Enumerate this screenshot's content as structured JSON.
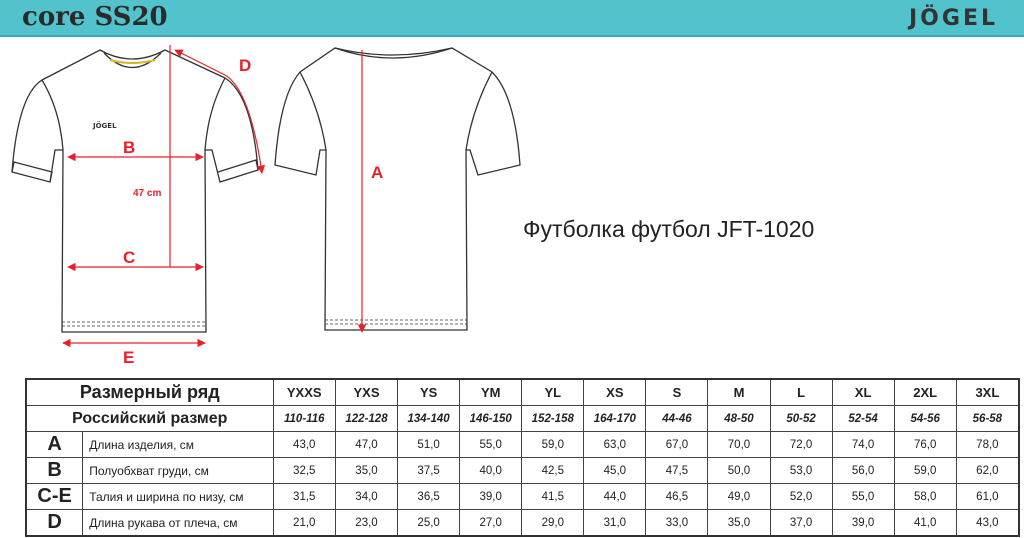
{
  "header": {
    "title": "core SS20",
    "logo": "JÖGEL",
    "banner_color": "#52c3cc"
  },
  "diagram": {
    "labels": {
      "A": "A",
      "B": "B",
      "C": "C",
      "D": "D",
      "E": "E"
    },
    "front_length_note": "47 cm",
    "chest_logo": "JÖGEL",
    "annotation_color": "#e8202a"
  },
  "product_title": "Футболка футбол JFT-1020",
  "size_table": {
    "header_label": "Размерный ряд",
    "ru_label": "Российский размер",
    "sizes": [
      "YXXS",
      "YXS",
      "YS",
      "YM",
      "YL",
      "XS",
      "S",
      "M",
      "L",
      "XL",
      "2XL",
      "3XL"
    ],
    "ru_sizes": [
      "110-116",
      "122-128",
      "134-140",
      "146-150",
      "152-158",
      "164-170",
      "44-46",
      "48-50",
      "50-52",
      "52-54",
      "54-56",
      "56-58"
    ],
    "rows": [
      {
        "code": "A",
        "label": "Длина изделия, см",
        "values": [
          "43,0",
          "47,0",
          "51,0",
          "55,0",
          "59,0",
          "63,0",
          "67,0",
          "70,0",
          "72,0",
          "74,0",
          "76,0",
          "78,0"
        ]
      },
      {
        "code": "B",
        "label": "Полуобхват груди, см",
        "values": [
          "32,5",
          "35,0",
          "37,5",
          "40,0",
          "42,5",
          "45,0",
          "47,5",
          "50,0",
          "53,0",
          "56,0",
          "59,0",
          "62,0"
        ]
      },
      {
        "code": "C-E",
        "label": "Талия и ширина по низу, см",
        "values": [
          "31,5",
          "34,0",
          "36,5",
          "39,0",
          "41,5",
          "44,0",
          "46,5",
          "49,0",
          "52,0",
          "55,0",
          "58,0",
          "61,0"
        ]
      },
      {
        "code": "D",
        "label": "Длина рукава от плеча, см",
        "values": [
          "21,0",
          "23,0",
          "25,0",
          "27,0",
          "29,0",
          "31,0",
          "33,0",
          "35,0",
          "37,0",
          "39,0",
          "41,0",
          "43,0"
        ]
      }
    ]
  }
}
